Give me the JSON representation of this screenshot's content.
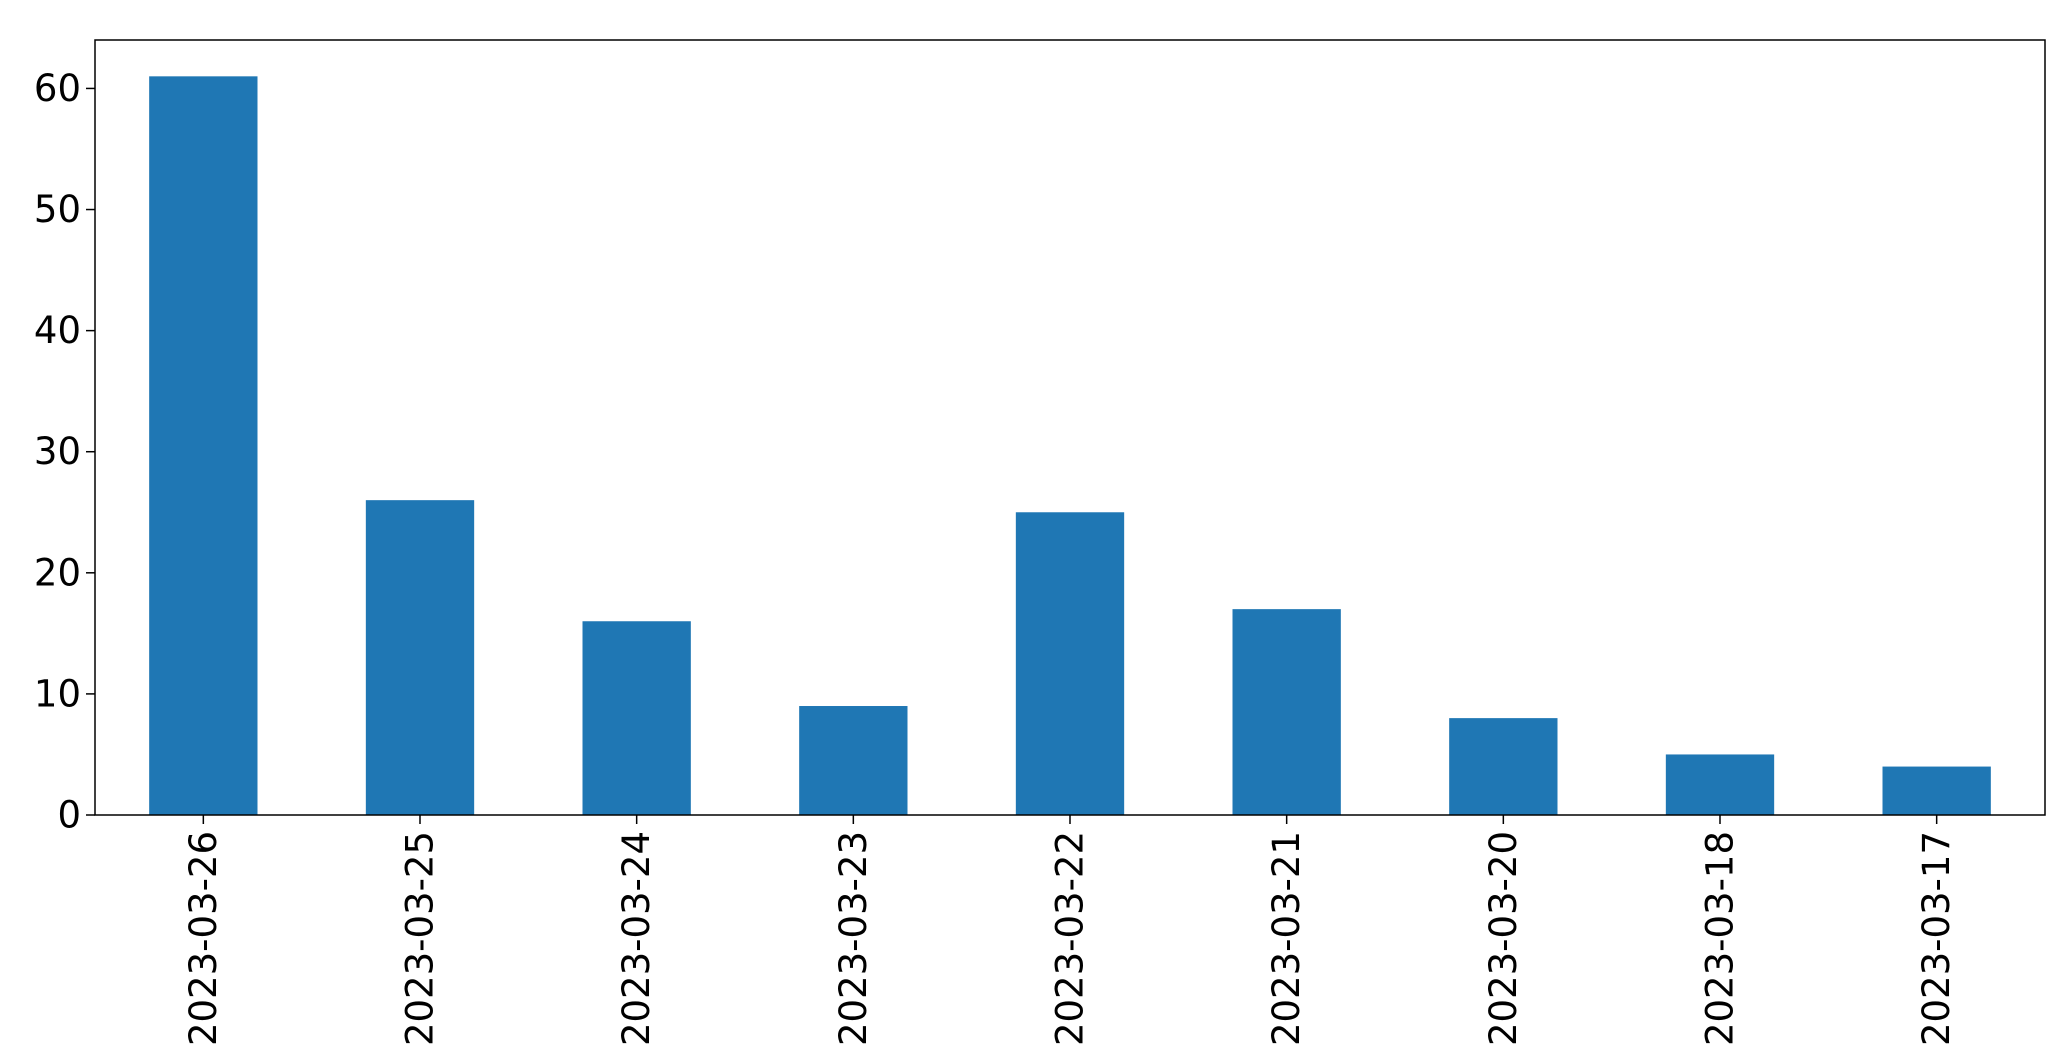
{
  "chart_data": {
    "type": "bar",
    "title": "",
    "xlabel": "",
    "ylabel": "",
    "categories": [
      "2023-03-26",
      "2023-03-25",
      "2023-03-24",
      "2023-03-23",
      "2023-03-22",
      "2023-03-21",
      "2023-03-20",
      "2023-03-18",
      "2023-03-17"
    ],
    "values": [
      61,
      26,
      16,
      9,
      25,
      17,
      8,
      5,
      4
    ],
    "ylim": [
      0,
      64
    ],
    "yticks": [
      0,
      10,
      20,
      30,
      40,
      50,
      60
    ],
    "grid": false,
    "legend": "none",
    "bar_color": "#1f77b4",
    "xtick_rotation": "vertical"
  }
}
